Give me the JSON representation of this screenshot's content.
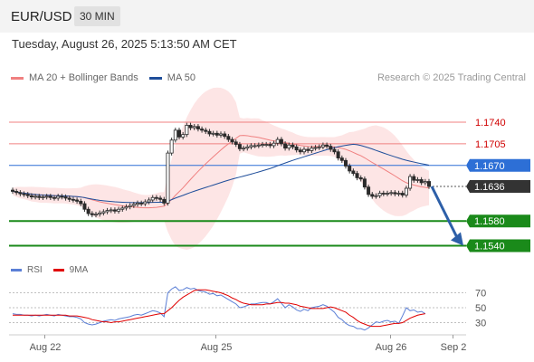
{
  "header": {
    "symbol": "EUR/USD",
    "timeframe": "30 MIN"
  },
  "datetime": "Tuesday, August 26, 2025 5:13:50 AM CET",
  "legend": {
    "ma20": {
      "label": "MA 20 + Bollinger Bands",
      "color": "#f08080"
    },
    "ma50": {
      "label": "MA 50",
      "color": "#1f4e9a"
    }
  },
  "copyright": "Research © 2025 Trading Central",
  "rsi_legend": {
    "rsi": {
      "label": "RSI",
      "color": "#5b7fd6"
    },
    "ma9": {
      "label": "9MA",
      "color": "#e00000"
    }
  },
  "chart_data": [
    {
      "type": "candlestick",
      "series": [
        {
          "name": "MA 20 + Bollinger Bands"
        },
        {
          "name": "MA 50"
        }
      ],
      "levels": [
        {
          "value": 1.174,
          "label": "1.1740",
          "color": "#f08080",
          "style": "resistance"
        },
        {
          "value": 1.1705,
          "label": "1.1705",
          "color": "#f08080",
          "style": "resistance"
        },
        {
          "value": 1.167,
          "label": "1.1670",
          "color": "#2d6fd6",
          "style": "pivot"
        },
        {
          "value": 1.1636,
          "label": "1.1636",
          "color": "#333333",
          "style": "last"
        },
        {
          "value": 1.158,
          "label": "1.1580",
          "color": "#1a8a1a",
          "style": "support"
        },
        {
          "value": 1.154,
          "label": "1.1540",
          "color": "#1a8a1a",
          "style": "support"
        }
      ],
      "ylim": [
        1.153,
        1.176
      ],
      "x_ticks": [
        "Aug 22",
        "Aug 25",
        "Aug 26",
        "Sep 2"
      ],
      "close": [
        1.1628,
        1.1626,
        1.1624,
        1.1623,
        1.1621,
        1.1619,
        1.162,
        1.1618,
        1.1619,
        1.162,
        1.1618,
        1.1617,
        1.162,
        1.1619,
        1.1617,
        1.1615,
        1.1614,
        1.1612,
        1.1608,
        1.1599,
        1.1592,
        1.159,
        1.1591,
        1.1593,
        1.1595,
        1.1597,
        1.1598,
        1.1596,
        1.1599,
        1.1601,
        1.1603,
        1.1605,
        1.1607,
        1.1609,
        1.1608,
        1.1611,
        1.1614,
        1.1618,
        1.1617,
        1.1615,
        1.1609,
        1.169,
        1.1711,
        1.1727,
        1.1716,
        1.172,
        1.1735,
        1.1731,
        1.1733,
        1.1729,
        1.1727,
        1.1725,
        1.1721,
        1.1722,
        1.1719,
        1.1721,
        1.1717,
        1.1712,
        1.1708,
        1.1704,
        1.1697,
        1.1698,
        1.17,
        1.1702,
        1.1702,
        1.1703,
        1.1704,
        1.1704,
        1.1702,
        1.1706,
        1.1712,
        1.1705,
        1.1698,
        1.1703,
        1.17,
        1.1695,
        1.1692,
        1.1696,
        1.1694,
        1.1698,
        1.1699,
        1.17,
        1.1703,
        1.1701,
        1.1696,
        1.1692,
        1.1682,
        1.1678,
        1.1669,
        1.1661,
        1.1657,
        1.165,
        1.1648,
        1.1635,
        1.1623,
        1.162,
        1.1621,
        1.1625,
        1.1624,
        1.1625,
        1.1626,
        1.1624,
        1.1625,
        1.1622,
        1.1633,
        1.1652,
        1.1646,
        1.1647,
        1.1642,
        1.1644,
        1.1636
      ],
      "x_label": "",
      "y_label": ""
    },
    {
      "type": "line",
      "series": [
        {
          "name": "RSI",
          "values": [
            42,
            41,
            41,
            40,
            40,
            39,
            40,
            39,
            40,
            41,
            40,
            39,
            41,
            40,
            39,
            38,
            38,
            37,
            35,
            30,
            28,
            27,
            28,
            30,
            32,
            33,
            34,
            33,
            35,
            36,
            37,
            38,
            40,
            41,
            40,
            42,
            44,
            46,
            45,
            43,
            38,
            70,
            75,
            78,
            73,
            74,
            77,
            75,
            76,
            73,
            72,
            71,
            68,
            69,
            66,
            67,
            64,
            61,
            58,
            55,
            50,
            51,
            53,
            55,
            55,
            56,
            57,
            57,
            55,
            58,
            62,
            56,
            50,
            54,
            51,
            47,
            45,
            48,
            46,
            50,
            51,
            52,
            54,
            52,
            48,
            44,
            37,
            34,
            29,
            26,
            25,
            22,
            22,
            20,
            23,
            27,
            31,
            30,
            32,
            33,
            31,
            32,
            29,
            39,
            50,
            46,
            47,
            44,
            45,
            42
          ]
        },
        {
          "name": "9MA",
          "values": [
            40,
            40,
            40,
            40,
            40,
            40,
            40,
            40,
            40,
            40,
            40,
            40,
            40,
            40,
            40,
            39,
            39,
            39,
            38,
            37,
            36,
            34,
            33,
            32,
            31,
            31,
            30,
            31,
            31,
            32,
            33,
            34,
            35,
            36,
            37,
            38,
            39,
            40,
            41,
            42,
            42,
            46,
            50,
            55,
            60,
            64,
            67,
            70,
            73,
            74,
            74,
            74,
            73,
            72,
            71,
            70,
            68,
            66,
            63,
            61,
            58,
            56,
            55,
            54,
            54,
            54,
            54,
            55,
            55,
            56,
            57,
            57,
            56,
            56,
            55,
            54,
            52,
            51,
            50,
            49,
            49,
            49,
            49,
            50,
            51,
            50,
            48,
            46,
            44,
            40,
            37,
            33,
            30,
            28,
            26,
            25,
            25,
            25,
            26,
            27,
            28,
            29,
            29,
            30,
            33,
            36,
            38,
            40,
            41,
            42
          ]
        }
      ],
      "ylim": [
        20,
        80
      ],
      "y_ticks": [
        70,
        50,
        30
      ]
    }
  ]
}
